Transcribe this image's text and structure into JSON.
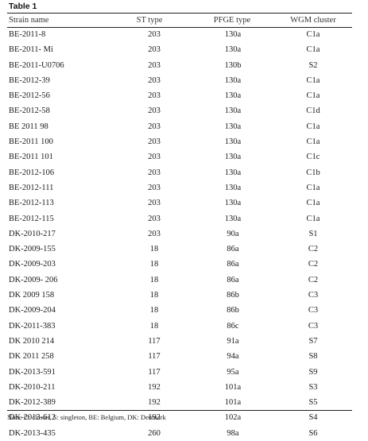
{
  "table": {
    "title": "Table 1",
    "columns": [
      "Strain name",
      "ST type",
      "PFGE type",
      "WGM cluster"
    ],
    "rows": [
      [
        "BE-2011-8",
        "203",
        "130a",
        "C1a"
      ],
      [
        "BE-2011- Mi",
        "203",
        "130a",
        "C1a"
      ],
      [
        "BE-2011-U0706",
        "203",
        "130b",
        "S2"
      ],
      [
        "BE-2012-39",
        "203",
        "130a",
        "C1a"
      ],
      [
        "BE-2012-56",
        "203",
        "130a",
        "C1a"
      ],
      [
        "BE-2012-58",
        "203",
        "130a",
        "C1d"
      ],
      [
        "BE 2011 98",
        "203",
        "130a",
        "C1a"
      ],
      [
        "BE-2011 100",
        "203",
        "130a",
        "C1a"
      ],
      [
        "BE-2011 101",
        "203",
        "130a",
        "C1c"
      ],
      [
        "BE-2012-106",
        "203",
        "130a",
        "C1b"
      ],
      [
        "BE-2012-111",
        "203",
        "130a",
        "C1a"
      ],
      [
        "BE-2012-113",
        "203",
        "130a",
        "C1a"
      ],
      [
        "BE-2012-115",
        "203",
        "130a",
        "C1a"
      ],
      [
        "DK-2010-217",
        "203",
        "90a",
        "S1"
      ],
      [
        "DK-2009-155",
        "18",
        "86a",
        "C2"
      ],
      [
        "DK-2009-203",
        "18",
        "86a",
        "C2"
      ],
      [
        "DK-2009- 206",
        "18",
        "86a",
        "C2"
      ],
      [
        "DK 2009 158",
        "18",
        "86b",
        "C3"
      ],
      [
        "DK-2009-204",
        "18",
        "86b",
        "C3"
      ],
      [
        "DK-2011-383",
        "18",
        "86c",
        "C3"
      ],
      [
        "DK 2010 214",
        "117",
        "91a",
        "S7"
      ],
      [
        "DK 2011 258",
        "117",
        "94a",
        "S8"
      ],
      [
        "DK-2013-591",
        "117",
        "95a",
        "S9"
      ],
      [
        "DK-2010-211",
        "192",
        "101a",
        "S3"
      ],
      [
        "DK-2012-389",
        "192",
        "101a",
        "S5"
      ],
      [
        "DK-2013-612",
        "192",
        "102a",
        "S4"
      ],
      [
        "DK-2013-435",
        "260",
        "98a",
        "S6"
      ]
    ],
    "note": "Note: C: cluster, S: singleton, BE: Belgium, DK: Denmark"
  }
}
